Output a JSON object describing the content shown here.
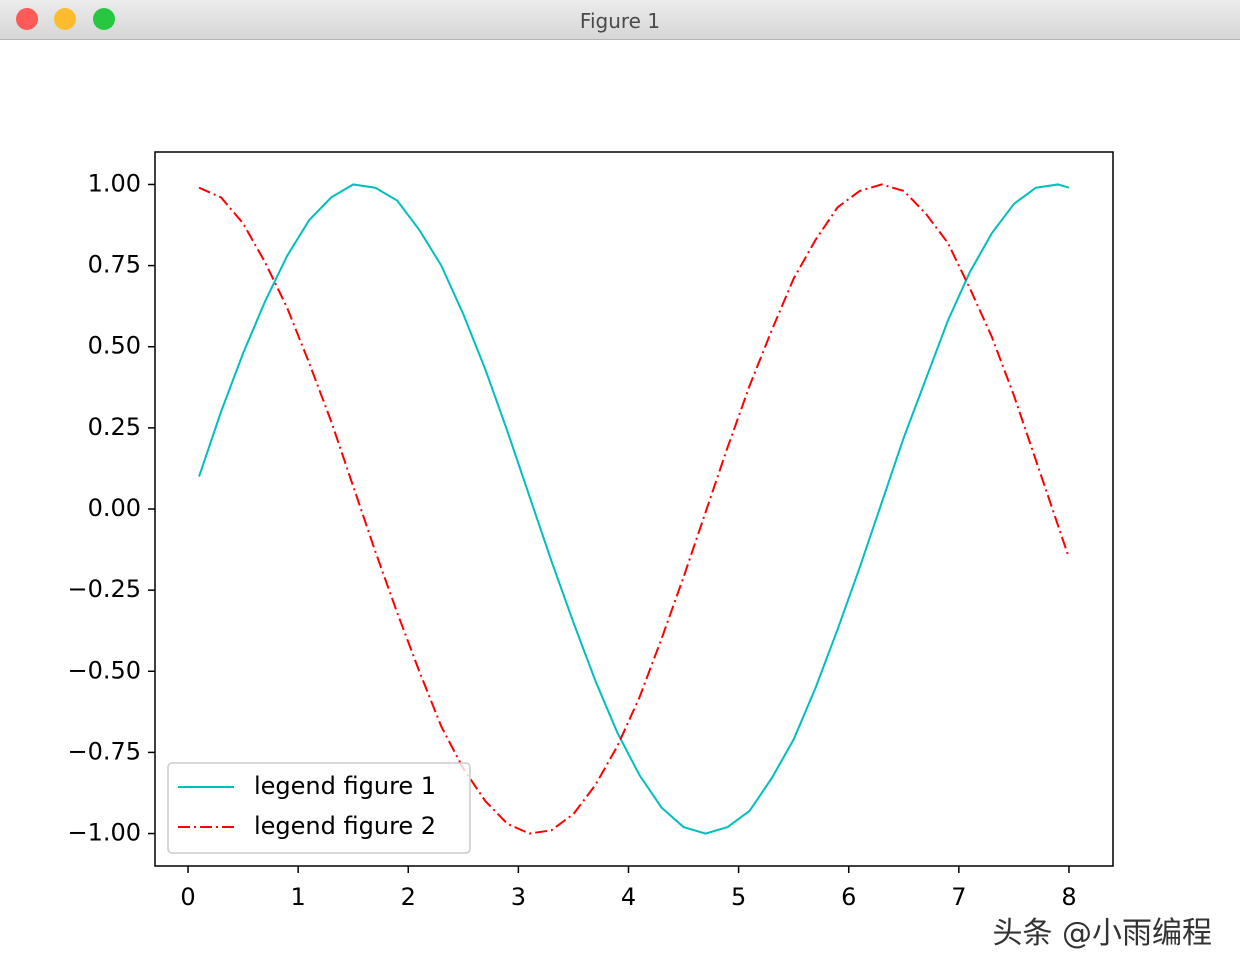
{
  "window_title": "Figure 1",
  "watermark": "头条 @小雨编程",
  "chart_data": {
    "type": "line",
    "x": [
      0.1,
      0.3,
      0.5,
      0.7,
      0.9,
      1.1,
      1.3,
      1.5,
      1.7,
      1.9,
      2.1,
      2.3,
      2.5,
      2.7,
      2.9,
      3.1,
      3.3,
      3.5,
      3.7,
      3.9,
      4.1,
      4.3,
      4.5,
      4.7,
      4.9,
      5.1,
      5.3,
      5.5,
      5.7,
      5.9,
      6.1,
      6.3,
      6.5,
      6.7,
      6.9,
      7.1,
      7.3,
      7.5,
      7.7,
      7.9,
      8.0
    ],
    "series": [
      {
        "name": "legend figure 1",
        "color": "#00bfbf",
        "linestyle": "solid",
        "values": [
          0.1,
          0.3,
          0.48,
          0.64,
          0.78,
          0.89,
          0.96,
          1.0,
          0.99,
          0.95,
          0.86,
          0.75,
          0.6,
          0.43,
          0.24,
          0.04,
          -0.16,
          -0.35,
          -0.53,
          -0.69,
          -0.82,
          -0.92,
          -0.98,
          -1.0,
          -0.98,
          -0.93,
          -0.83,
          -0.71,
          -0.55,
          -0.37,
          -0.18,
          0.02,
          0.22,
          0.4,
          0.58,
          0.73,
          0.85,
          0.94,
          0.99,
          1.0,
          0.99
        ]
      },
      {
        "name": "legend figure 2",
        "color": "#ff0000",
        "linestyle": "dashdot",
        "values": [
          0.99,
          0.96,
          0.88,
          0.76,
          0.62,
          0.45,
          0.27,
          0.07,
          -0.13,
          -0.32,
          -0.5,
          -0.67,
          -0.8,
          -0.9,
          -0.97,
          -1.0,
          -0.99,
          -0.94,
          -0.85,
          -0.73,
          -0.58,
          -0.4,
          -0.21,
          -0.01,
          0.19,
          0.38,
          0.55,
          0.71,
          0.83,
          0.93,
          0.98,
          1.0,
          0.98,
          0.91,
          0.82,
          0.68,
          0.53,
          0.35,
          0.15,
          -0.05,
          -0.15
        ]
      }
    ],
    "xlim": [
      -0.3,
      8.4
    ],
    "ylim": [
      -1.1,
      1.1
    ],
    "xticks": [
      0,
      1,
      2,
      3,
      4,
      5,
      6,
      7,
      8
    ],
    "yticks": [
      {
        "value": 1,
        "label": "1.00"
      },
      {
        "value": 0.75,
        "label": "0.75"
      },
      {
        "value": 0.5,
        "label": "0.50"
      },
      {
        "value": 0.25,
        "label": "0.25"
      },
      {
        "value": 0,
        "label": "0.00"
      },
      {
        "value": -0.25,
        "label": "−0.25"
      },
      {
        "value": -0.5,
        "label": "−0.50"
      },
      {
        "value": -0.75,
        "label": "−0.75"
      },
      {
        "value": -1,
        "label": "−1.00"
      }
    ],
    "legend": "lower left"
  }
}
